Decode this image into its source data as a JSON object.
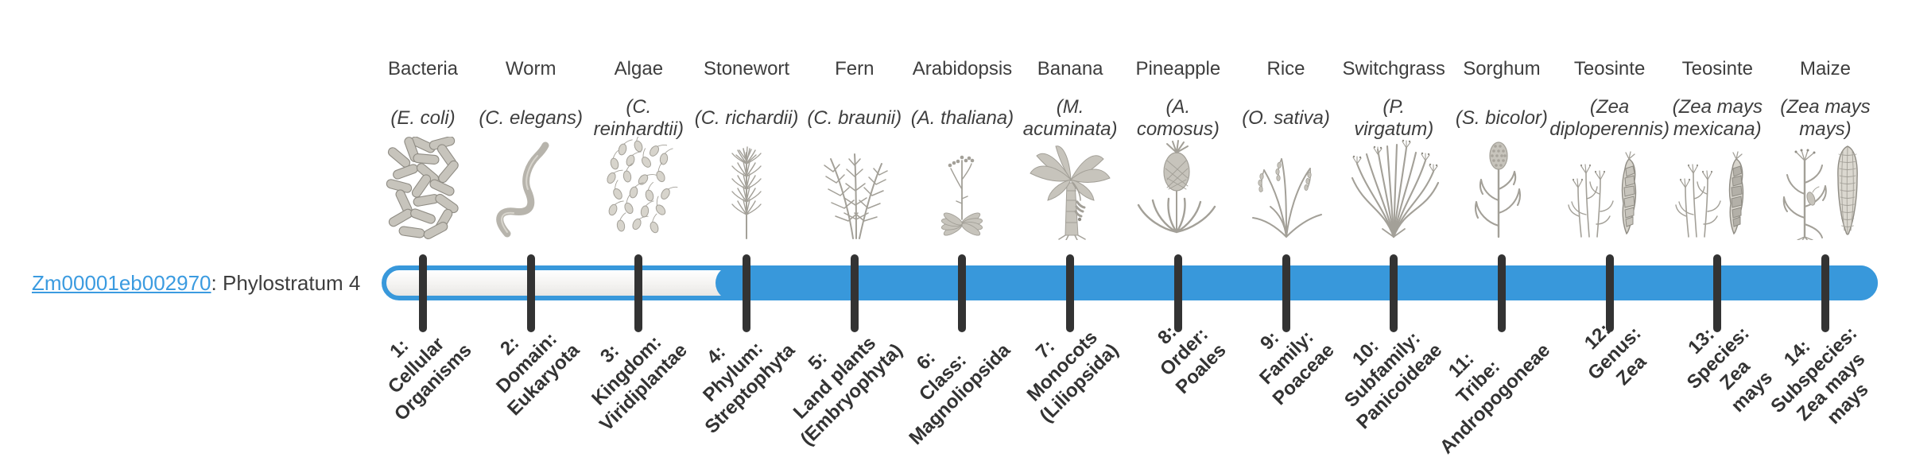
{
  "gene": {
    "id": "Zm00001eb002970",
    "label_suffix": ": Phylostratum 4",
    "phylostratum": 4
  },
  "colors": {
    "bar_blue": "#3898DB",
    "link_blue": "#3B9BE0",
    "tick_color": "#333333",
    "text_color": "#3E3E3E",
    "illustration_gray": "#B9B6AE"
  },
  "chart_data": {
    "type": "bar",
    "orientation": "horizontal",
    "title": "",
    "series": [
      {
        "name": "Zm00001eb002970",
        "phylostratum": 4,
        "filled_strata_range": [
          4,
          14
        ],
        "track_strata_range": [
          1,
          14
        ]
      }
    ],
    "categories": [
      "1: Cellular Organisms",
      "2: Domain: Eukaryota",
      "3: Kingdom: Viridiplantae",
      "4: Phylum: Streptophyta",
      "5: Land plants (Embryophyta)",
      "6: Class: Magnoliopsida",
      "7: Monocots (Liliopsida)",
      "8: Order: Poales",
      "9: Family: Poaceae",
      "10: Subfamily: Panicoideae",
      "11: Tribe: Andropogoneae",
      "12: Genus: Zea",
      "13: Species: Zea mays",
      "14: Subspecies: Zea mays mays"
    ],
    "legend": null,
    "grid": false,
    "organisms": [
      {
        "index": 1,
        "common": "Bacteria",
        "scientific": "(E. coli)",
        "stratum": "1:\nCellular\nOrganisms",
        "icon": "bacteria"
      },
      {
        "index": 2,
        "common": "Worm",
        "scientific": "(C. elegans)",
        "stratum": "2:\nDomain:\nEukaryota",
        "icon": "worm"
      },
      {
        "index": 3,
        "common": "Algae",
        "scientific": "(C.\nreinhardtii)",
        "stratum": "3:\nKingdom:\nViridiplantae",
        "icon": "algae"
      },
      {
        "index": 4,
        "common": "Stonewort",
        "scientific": "(C. richardii)",
        "stratum": "4:\nPhylum:\nStreptophyta",
        "icon": "stonewort"
      },
      {
        "index": 5,
        "common": "Fern",
        "scientific": "(C. braunii)",
        "stratum": "5:\nLand plants\n(Embryophyta)",
        "icon": "fern"
      },
      {
        "index": 6,
        "common": "Arabidopsis",
        "scientific": "(A. thaliana)",
        "stratum": "6:\nClass:\nMagnoliopsida",
        "icon": "arabidopsis"
      },
      {
        "index": 7,
        "common": "Banana",
        "scientific": "(M.\nacuminata)",
        "stratum": "7:\nMonocots\n(Liliopsida)",
        "icon": "banana"
      },
      {
        "index": 8,
        "common": "Pineapple",
        "scientific": "(A.\ncomosus)",
        "stratum": "8:\nOrder:\nPoales",
        "icon": "pineapple"
      },
      {
        "index": 9,
        "common": "Rice",
        "scientific": "(O. sativa)",
        "stratum": "9:\nFamily:\nPoaceae",
        "icon": "rice"
      },
      {
        "index": 10,
        "common": "Switchgrass",
        "scientific": "(P.\nvirgatum)",
        "stratum": "10:\nSubfamily:\nPanicoideae",
        "icon": "switchgrass"
      },
      {
        "index": 11,
        "common": "Sorghum",
        "scientific": "(S. bicolor)",
        "stratum": "11:\nTribe:\nAndropogoneae",
        "icon": "sorghum"
      },
      {
        "index": 12,
        "common": "Teosinte",
        "scientific": "(Zea\ndiploperennis)",
        "stratum": "12:\nGenus:\nZea",
        "icon": "teosinte"
      },
      {
        "index": 13,
        "common": "Teosinte",
        "scientific": "(Zea mays\nmexicana)",
        "stratum": "13:\nSpecies:\nZea\nmays",
        "icon": "teosinte2"
      },
      {
        "index": 14,
        "common": "Maize",
        "scientific": "(Zea mays\nmays)",
        "stratum": "14:\nSubspecies:\nZea mays\nmays",
        "icon": "maize"
      }
    ]
  }
}
